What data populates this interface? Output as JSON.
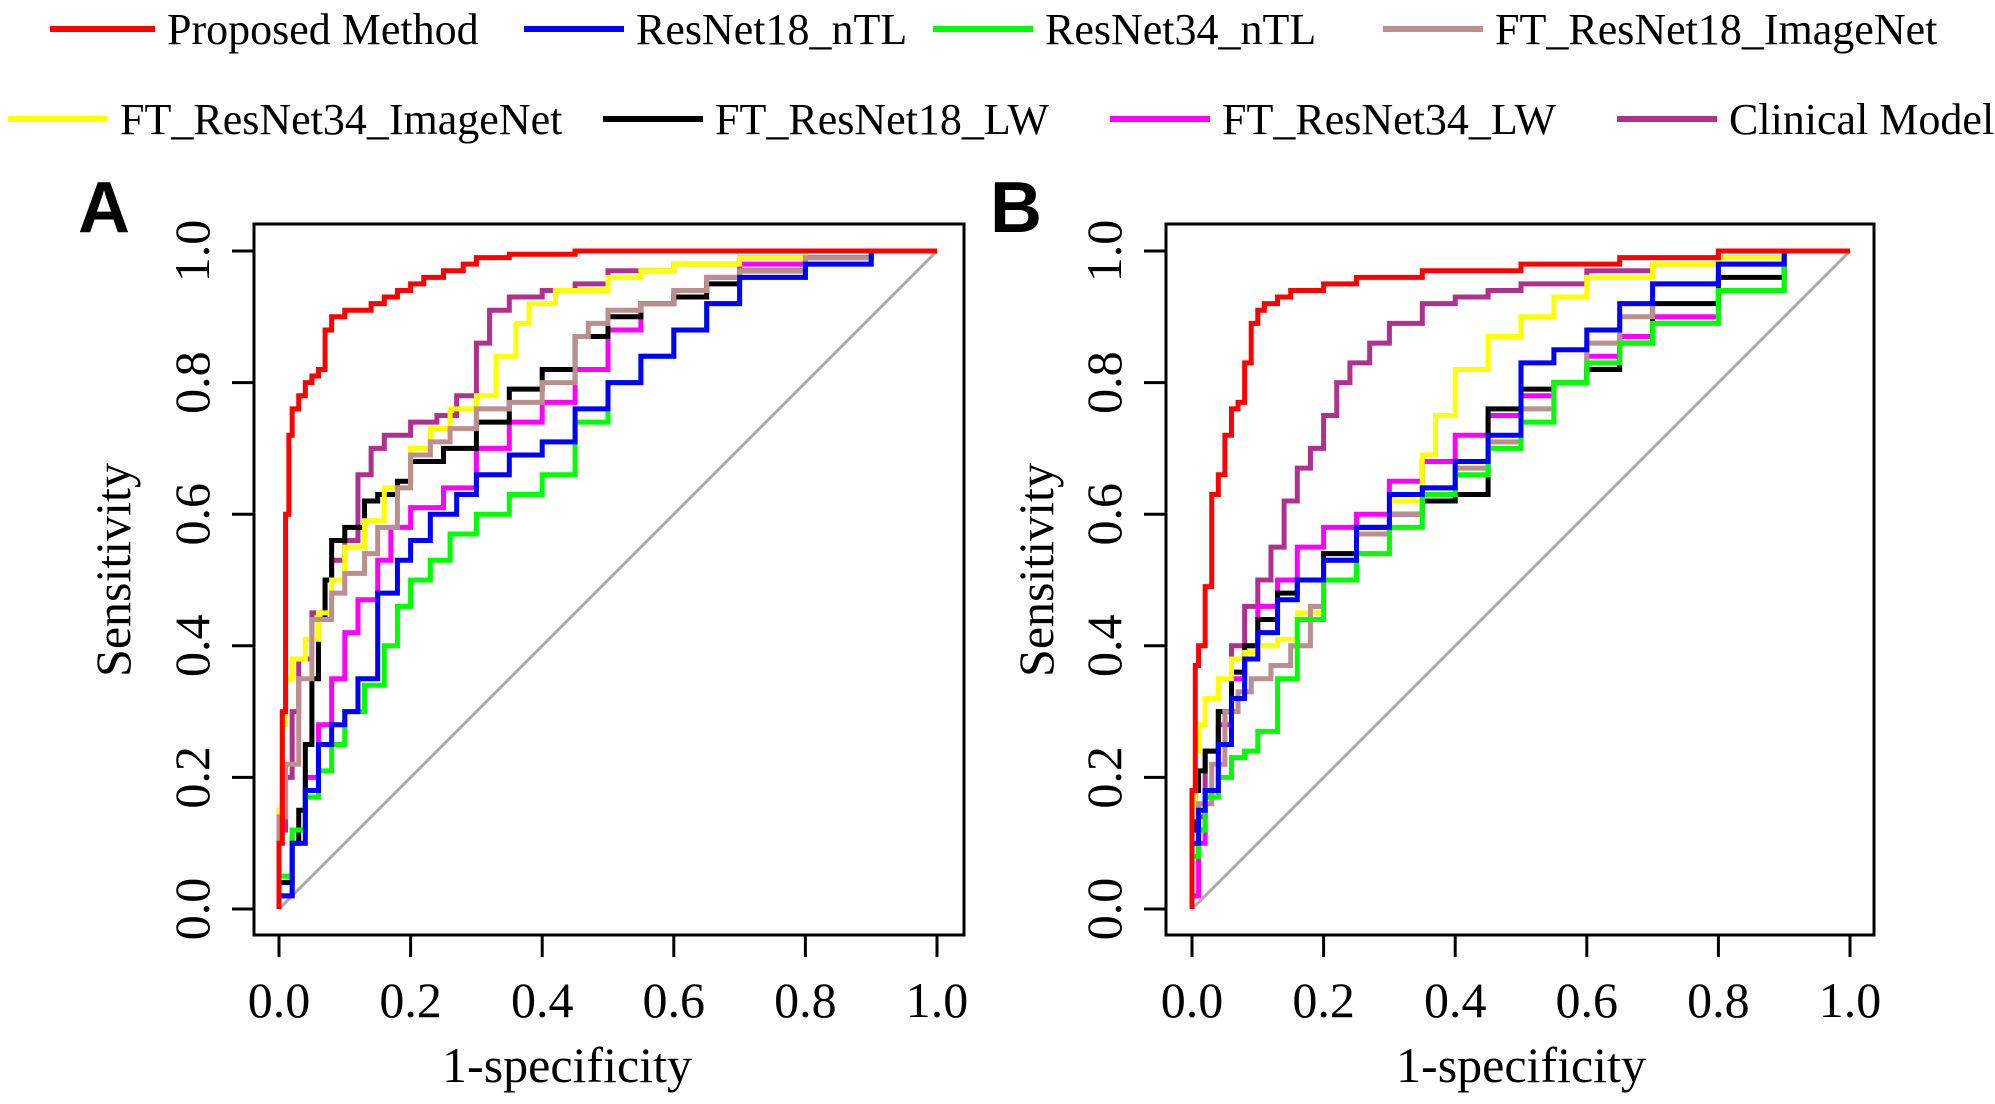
{
  "legend": [
    {
      "name": "Proposed Method",
      "color": "#ff0000"
    },
    {
      "name": "ResNet18_nTL",
      "color": "#0000ff"
    },
    {
      "name": "ResNet34_nTL",
      "color": "#00ff00"
    },
    {
      "name": "FT_ResNet18_ImageNet",
      "color": "#bc8f8f"
    },
    {
      "name": "FT_ResNet34_ImageNet",
      "color": "#ffff00"
    },
    {
      "name": "FT_ResNet18_LW",
      "color": "#000000"
    },
    {
      "name": "FT_ResNet34_LW",
      "color": "#ff00ff"
    },
    {
      "name": "Clinical Model",
      "color": "#b03090"
    }
  ],
  "chart_data": [
    {
      "type": "line",
      "panel_label": "A",
      "xlabel": "1-specificity",
      "ylabel": "Sensitivity",
      "xlim": [
        0,
        1
      ],
      "ylim": [
        0,
        1
      ],
      "xticks": [
        "0.0",
        "0.2",
        "0.4",
        "0.6",
        "0.8",
        "1.0"
      ],
      "yticks": [
        "0.0",
        "0.2",
        "0.4",
        "0.6",
        "0.8",
        "1.0"
      ],
      "reference_line": {
        "x": [
          0,
          1
        ],
        "y": [
          0,
          1
        ],
        "color": "#aaaaaa"
      },
      "series": [
        {
          "name": "Proposed Method",
          "x": [
            0,
            0.005,
            0.005,
            0.01,
            0.01,
            0.015,
            0.02,
            0.03,
            0.04,
            0.05,
            0.06,
            0.07,
            0.08,
            0.09,
            0.1,
            0.12,
            0.14,
            0.16,
            0.18,
            0.2,
            0.22,
            0.25,
            0.28,
            0.3,
            0.35,
            0.45,
            0.6,
            0.75,
            1
          ],
          "y": [
            0,
            0.1,
            0.25,
            0.3,
            0.55,
            0.6,
            0.72,
            0.76,
            0.78,
            0.8,
            0.81,
            0.82,
            0.88,
            0.9,
            0.9,
            0.91,
            0.91,
            0.92,
            0.93,
            0.94,
            0.95,
            0.96,
            0.97,
            0.98,
            0.99,
            0.995,
            1,
            1,
            1
          ]
        },
        {
          "name": "ResNet18_nTL",
          "x": [
            0,
            0.02,
            0.04,
            0.06,
            0.08,
            0.1,
            0.12,
            0.15,
            0.18,
            0.2,
            0.23,
            0.27,
            0.3,
            0.35,
            0.4,
            0.45,
            0.5,
            0.55,
            0.6,
            0.65,
            0.7,
            0.8,
            0.9,
            1
          ],
          "y": [
            0,
            0.02,
            0.1,
            0.18,
            0.25,
            0.28,
            0.3,
            0.35,
            0.48,
            0.53,
            0.56,
            0.6,
            0.63,
            0.66,
            0.69,
            0.71,
            0.76,
            0.8,
            0.84,
            0.88,
            0.92,
            0.96,
            0.98,
            1
          ]
        },
        {
          "name": "ResNet34_nTL",
          "x": [
            0,
            0.02,
            0.04,
            0.06,
            0.08,
            0.1,
            0.13,
            0.16,
            0.18,
            0.2,
            0.23,
            0.26,
            0.3,
            0.35,
            0.4,
            0.45,
            0.5,
            0.55,
            0.6,
            0.65,
            0.7,
            0.8,
            0.9,
            1
          ],
          "y": [
            0,
            0.05,
            0.12,
            0.17,
            0.21,
            0.25,
            0.3,
            0.34,
            0.4,
            0.46,
            0.5,
            0.53,
            0.57,
            0.6,
            0.63,
            0.66,
            0.74,
            0.8,
            0.84,
            0.88,
            0.92,
            0.96,
            0.98,
            1
          ]
        },
        {
          "name": "FT_ResNet18_ImageNet",
          "x": [
            0,
            0.01,
            0.03,
            0.05,
            0.08,
            0.1,
            0.13,
            0.15,
            0.18,
            0.2,
            0.23,
            0.26,
            0.3,
            0.35,
            0.4,
            0.45,
            0.47,
            0.5,
            0.55,
            0.6,
            0.65,
            0.7,
            0.8,
            0.9,
            1
          ],
          "y": [
            0,
            0.14,
            0.22,
            0.35,
            0.44,
            0.48,
            0.51,
            0.54,
            0.58,
            0.64,
            0.69,
            0.71,
            0.73,
            0.76,
            0.77,
            0.8,
            0.87,
            0.89,
            0.91,
            0.92,
            0.94,
            0.96,
            0.97,
            0.99,
            1
          ]
        },
        {
          "name": "FT_ResNet34_ImageNet",
          "x": [
            0,
            0.005,
            0.01,
            0.02,
            0.04,
            0.06,
            0.08,
            0.1,
            0.13,
            0.16,
            0.2,
            0.23,
            0.26,
            0.3,
            0.33,
            0.36,
            0.38,
            0.42,
            0.5,
            0.55,
            0.6,
            0.7,
            0.8,
            0.9,
            1
          ],
          "y": [
            0,
            0.15,
            0.28,
            0.35,
            0.38,
            0.41,
            0.45,
            0.5,
            0.55,
            0.59,
            0.64,
            0.7,
            0.73,
            0.76,
            0.78,
            0.84,
            0.89,
            0.92,
            0.94,
            0.96,
            0.97,
            0.98,
            0.99,
            1,
            1
          ]
        },
        {
          "name": "FT_ResNet18_LW",
          "x": [
            0,
            0.02,
            0.03,
            0.04,
            0.05,
            0.06,
            0.07,
            0.08,
            0.1,
            0.13,
            0.15,
            0.18,
            0.2,
            0.25,
            0.3,
            0.35,
            0.4,
            0.45,
            0.5,
            0.55,
            0.6,
            0.65,
            0.7,
            0.8,
            0.9,
            1
          ],
          "y": [
            0,
            0.04,
            0.1,
            0.15,
            0.25,
            0.35,
            0.44,
            0.5,
            0.56,
            0.58,
            0.62,
            0.63,
            0.65,
            0.68,
            0.7,
            0.74,
            0.79,
            0.82,
            0.87,
            0.9,
            0.92,
            0.93,
            0.95,
            0.97,
            0.99,
            1
          ]
        },
        {
          "name": "FT_ResNet34_LW",
          "x": [
            0,
            0.02,
            0.04,
            0.06,
            0.08,
            0.1,
            0.12,
            0.15,
            0.17,
            0.2,
            0.25,
            0.3,
            0.35,
            0.4,
            0.45,
            0.5,
            0.55,
            0.6,
            0.65,
            0.7,
            0.8,
            0.9,
            1
          ],
          "y": [
            0,
            0.02,
            0.12,
            0.2,
            0.28,
            0.35,
            0.42,
            0.47,
            0.53,
            0.58,
            0.61,
            0.64,
            0.7,
            0.74,
            0.77,
            0.82,
            0.88,
            0.92,
            0.94,
            0.96,
            0.98,
            0.99,
            1
          ]
        },
        {
          "name": "Clinical Model",
          "x": [
            0,
            0.01,
            0.02,
            0.03,
            0.05,
            0.07,
            0.08,
            0.1,
            0.12,
            0.14,
            0.16,
            0.2,
            0.24,
            0.27,
            0.3,
            0.32,
            0.35,
            0.4,
            0.45,
            0.5,
            0.6,
            0.7,
            0.8,
            0.9,
            1
          ],
          "y": [
            0,
            0.12,
            0.2,
            0.3,
            0.38,
            0.45,
            0.5,
            0.53,
            0.56,
            0.66,
            0.7,
            0.72,
            0.74,
            0.75,
            0.78,
            0.86,
            0.91,
            0.93,
            0.94,
            0.95,
            0.97,
            0.98,
            0.99,
            1,
            1
          ]
        }
      ]
    },
    {
      "type": "line",
      "panel_label": "B",
      "xlabel": "1-specificity",
      "ylabel": "Sensitivity",
      "xlim": [
        0,
        1
      ],
      "ylim": [
        0,
        1
      ],
      "xticks": [
        "0.0",
        "0.2",
        "0.4",
        "0.6",
        "0.8",
        "1.0"
      ],
      "yticks": [
        "0.0",
        "0.2",
        "0.4",
        "0.6",
        "0.8",
        "1.0"
      ],
      "reference_line": {
        "x": [
          0,
          1
        ],
        "y": [
          0,
          1
        ],
        "color": "#aaaaaa"
      },
      "series": [
        {
          "name": "Proposed Method",
          "x": [
            0,
            0.005,
            0.01,
            0.02,
            0.03,
            0.04,
            0.05,
            0.06,
            0.07,
            0.08,
            0.09,
            0.1,
            0.11,
            0.13,
            0.15,
            0.2,
            0.25,
            0.35,
            0.5,
            0.65,
            0.8,
            0.9,
            1
          ],
          "y": [
            0,
            0.18,
            0.37,
            0.4,
            0.49,
            0.63,
            0.66,
            0.72,
            0.76,
            0.77,
            0.83,
            0.89,
            0.91,
            0.92,
            0.93,
            0.94,
            0.95,
            0.96,
            0.97,
            0.98,
            0.99,
            1,
            1
          ]
        },
        {
          "name": "ResNet18_nTL",
          "x": [
            0,
            0.01,
            0.02,
            0.04,
            0.06,
            0.08,
            0.1,
            0.13,
            0.16,
            0.2,
            0.25,
            0.3,
            0.35,
            0.4,
            0.45,
            0.5,
            0.55,
            0.6,
            0.65,
            0.7,
            0.8,
            0.9,
            1
          ],
          "y": [
            0,
            0.1,
            0.15,
            0.18,
            0.25,
            0.32,
            0.38,
            0.42,
            0.47,
            0.5,
            0.53,
            0.58,
            0.63,
            0.64,
            0.68,
            0.72,
            0.83,
            0.85,
            0.88,
            0.92,
            0.95,
            0.98,
            1
          ]
        },
        {
          "name": "ResNet34_nTL",
          "x": [
            0,
            0.01,
            0.02,
            0.04,
            0.06,
            0.08,
            0.1,
            0.13,
            0.16,
            0.2,
            0.25,
            0.3,
            0.35,
            0.4,
            0.45,
            0.5,
            0.55,
            0.6,
            0.65,
            0.7,
            0.8,
            0.9,
            1
          ],
          "y": [
            0,
            0.08,
            0.12,
            0.17,
            0.2,
            0.23,
            0.24,
            0.27,
            0.35,
            0.44,
            0.5,
            0.54,
            0.58,
            0.63,
            0.66,
            0.7,
            0.74,
            0.8,
            0.83,
            0.86,
            0.89,
            0.94,
            1
          ]
        },
        {
          "name": "FT_ResNet18_ImageNet",
          "x": [
            0,
            0.01,
            0.03,
            0.05,
            0.07,
            0.09,
            0.12,
            0.15,
            0.18,
            0.2,
            0.25,
            0.3,
            0.35,
            0.4,
            0.45,
            0.5,
            0.55,
            0.6,
            0.65,
            0.7,
            0.8,
            0.9,
            1
          ],
          "y": [
            0,
            0.1,
            0.16,
            0.22,
            0.3,
            0.33,
            0.35,
            0.37,
            0.4,
            0.46,
            0.53,
            0.57,
            0.6,
            0.64,
            0.67,
            0.71,
            0.76,
            0.8,
            0.86,
            0.9,
            0.95,
            0.98,
            1
          ]
        },
        {
          "name": "FT_ResNet34_ImageNet",
          "x": [
            0,
            0.005,
            0.01,
            0.02,
            0.04,
            0.06,
            0.08,
            0.1,
            0.13,
            0.16,
            0.2,
            0.25,
            0.3,
            0.35,
            0.37,
            0.4,
            0.45,
            0.5,
            0.55,
            0.6,
            0.7,
            0.8,
            0.9,
            1
          ],
          "y": [
            0,
            0.14,
            0.24,
            0.28,
            0.32,
            0.35,
            0.38,
            0.39,
            0.4,
            0.41,
            0.45,
            0.5,
            0.54,
            0.62,
            0.69,
            0.75,
            0.82,
            0.87,
            0.9,
            0.93,
            0.96,
            0.98,
            0.99,
            1
          ]
        },
        {
          "name": "FT_ResNet18_LW",
          "x": [
            0,
            0.005,
            0.01,
            0.02,
            0.04,
            0.06,
            0.08,
            0.1,
            0.13,
            0.16,
            0.2,
            0.25,
            0.3,
            0.35,
            0.4,
            0.45,
            0.5,
            0.55,
            0.6,
            0.65,
            0.7,
            0.8,
            0.9,
            1
          ],
          "y": [
            0,
            0.12,
            0.18,
            0.21,
            0.24,
            0.3,
            0.36,
            0.4,
            0.44,
            0.48,
            0.5,
            0.54,
            0.58,
            0.6,
            0.62,
            0.63,
            0.76,
            0.79,
            0.8,
            0.82,
            0.86,
            0.92,
            0.96,
            1
          ]
        },
        {
          "name": "FT_ResNet34_LW",
          "x": [
            0,
            0.01,
            0.02,
            0.04,
            0.06,
            0.08,
            0.1,
            0.13,
            0.16,
            0.2,
            0.25,
            0.3,
            0.35,
            0.4,
            0.45,
            0.5,
            0.55,
            0.6,
            0.65,
            0.7,
            0.8,
            0.9,
            1
          ],
          "y": [
            0,
            0.02,
            0.1,
            0.18,
            0.28,
            0.35,
            0.4,
            0.46,
            0.5,
            0.55,
            0.58,
            0.6,
            0.65,
            0.68,
            0.72,
            0.75,
            0.78,
            0.8,
            0.84,
            0.87,
            0.9,
            0.94,
            1
          ]
        },
        {
          "name": "Clinical Model",
          "x": [
            0,
            0.02,
            0.04,
            0.06,
            0.08,
            0.1,
            0.12,
            0.14,
            0.16,
            0.18,
            0.2,
            0.22,
            0.24,
            0.27,
            0.3,
            0.35,
            0.4,
            0.45,
            0.5,
            0.6,
            0.7,
            0.8,
            0.9,
            1
          ],
          "y": [
            0,
            0.14,
            0.24,
            0.3,
            0.4,
            0.46,
            0.5,
            0.55,
            0.62,
            0.67,
            0.7,
            0.75,
            0.8,
            0.83,
            0.86,
            0.89,
            0.92,
            0.93,
            0.94,
            0.95,
            0.97,
            0.98,
            0.99,
            1
          ]
        }
      ]
    }
  ]
}
